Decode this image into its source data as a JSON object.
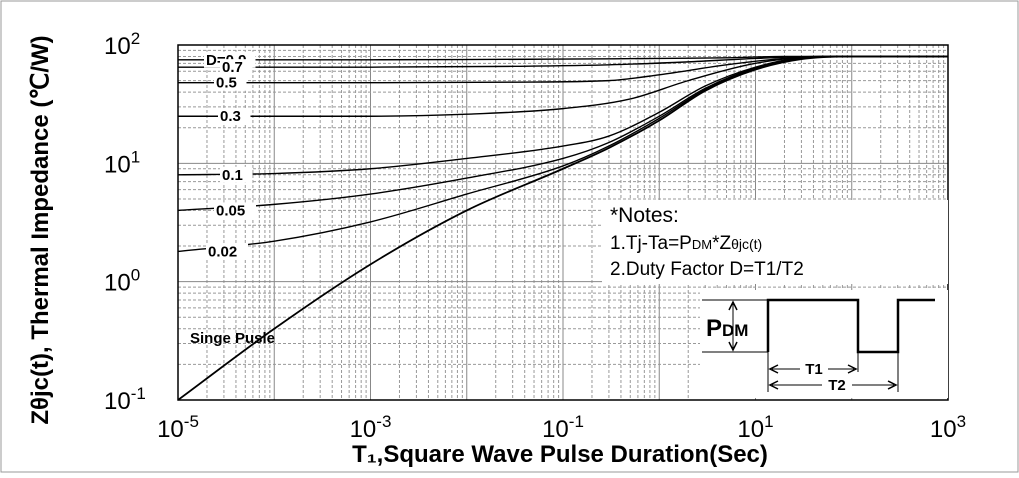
{
  "chart_data": {
    "type": "line",
    "xscale": "log",
    "yscale": "log",
    "xlim": [
      1e-05,
      1000
    ],
    "ylim": [
      0.1,
      100
    ],
    "grid": true,
    "xlabel": "T₁,Square Wave Pulse Duration(Sec)",
    "ylabel": "Zθjc(t), Thermal Impedance (℃/W)",
    "x_ticks": [
      {
        "base": "10",
        "exp": "-5",
        "value": 1e-05
      },
      {
        "base": "10",
        "exp": "-3",
        "value": 0.001
      },
      {
        "base": "10",
        "exp": "-1",
        "value": 0.1
      },
      {
        "base": "10",
        "exp": "1",
        "value": 10
      },
      {
        "base": "10",
        "exp": "3",
        "value": 1000
      }
    ],
    "y_ticks": [
      {
        "base": "10",
        "exp": "-1",
        "value": 0.1
      },
      {
        "base": "10",
        "exp": "0",
        "value": 1
      },
      {
        "base": "10",
        "exp": "1",
        "value": 10
      },
      {
        "base": "10",
        "exp": "2",
        "value": 100
      }
    ],
    "series": [
      {
        "name": "D=0.9",
        "x": [
          1e-05,
          0.001,
          0.1,
          1,
          5,
          20,
          100,
          1000
        ],
        "y": [
          75,
          75,
          76,
          77,
          78,
          80,
          80,
          80
        ]
      },
      {
        "name": "0.7",
        "x": [
          1e-05,
          0.001,
          0.03,
          0.3,
          2,
          10,
          50,
          1000
        ],
        "y": [
          65,
          65,
          66,
          68,
          72,
          77,
          80,
          80
        ]
      },
      {
        "name": "0.5",
        "x": [
          1e-05,
          0.001,
          0.03,
          0.3,
          1,
          5,
          20,
          60,
          1000
        ],
        "y": [
          48,
          48,
          48.5,
          50,
          56,
          68,
          77,
          80,
          80
        ]
      },
      {
        "name": "0.3",
        "x": [
          1e-05,
          0.001,
          0.01,
          0.1,
          0.5,
          2,
          10,
          50,
          1000
        ],
        "y": [
          25,
          25,
          26,
          29,
          35,
          50,
          70,
          80,
          80
        ]
      },
      {
        "name": "0.1",
        "x": [
          1e-05,
          0.0001,
          0.001,
          0.01,
          0.1,
          0.3,
          1,
          3,
          10,
          30,
          100,
          1000
        ],
        "y": [
          8,
          8.2,
          9,
          11,
          14,
          17,
          27,
          45,
          65,
          78,
          80,
          80
        ]
      },
      {
        "name": "0.05",
        "x": [
          1e-05,
          0.0001,
          0.001,
          0.01,
          0.1,
          0.3,
          1,
          3,
          10,
          30,
          100,
          1000
        ],
        "y": [
          4,
          4.5,
          5.5,
          7.5,
          11,
          15,
          25,
          43,
          64,
          77,
          80,
          80
        ]
      },
      {
        "name": "0.02",
        "x": [
          1e-05,
          0.0001,
          0.001,
          0.01,
          0.1,
          0.3,
          1,
          3,
          10,
          30,
          100,
          1000
        ],
        "y": [
          1.8,
          2.2,
          3.2,
          5.5,
          9.5,
          14,
          24,
          42,
          63,
          77,
          80,
          80
        ]
      },
      {
        "name": "Singe Pusle",
        "x": [
          1e-05,
          0.0001,
          0.001,
          0.01,
          0.1,
          0.3,
          1,
          3,
          10,
          30,
          100,
          1000
        ],
        "y": [
          0.1,
          0.4,
          1.4,
          4,
          9,
          13.5,
          23,
          41,
          62,
          76,
          80,
          80
        ]
      }
    ],
    "annotations": {
      "notes_title": "*Notes:",
      "note1_prefix": "1.Tj-Ta=P",
      "note1_sub": "DM",
      "note1_mid": "*Z",
      "note1_theta": "θjc(t)",
      "note2": "2.Duty Factor D=T1/T2",
      "pdm_main": "P",
      "pdm_sub": "DM",
      "t1": "T1",
      "t2": "T2"
    }
  }
}
